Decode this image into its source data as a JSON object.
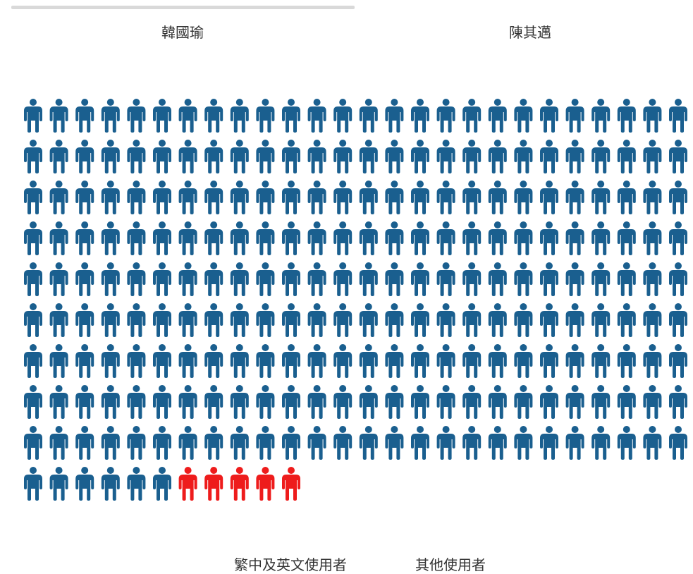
{
  "tabs": [
    {
      "label": "韓國瑜",
      "active": true
    },
    {
      "label": "陳其邁",
      "active": false
    }
  ],
  "chart_data": {
    "type": "pictogram",
    "total_icons": 245,
    "icons_per_row": 26,
    "series": [
      {
        "name": "繁中及英文使用者",
        "count": 240,
        "color": "#1a5f8f"
      },
      {
        "name": "其他使用者",
        "count": 5,
        "color": "#ee1c1c"
      }
    ],
    "icon": "person-icon",
    "legend": "bottom"
  }
}
